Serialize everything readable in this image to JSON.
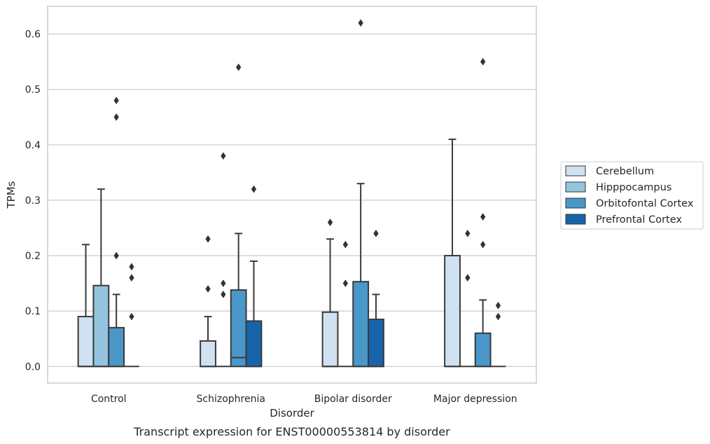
{
  "chart_data": {
    "type": "box",
    "caption": "Transcript expression for ENST00000553814 by disorder",
    "xlabel": "Disorder",
    "ylabel": "TPMs",
    "ylim": [
      -0.03,
      0.65
    ],
    "yticks": [
      0.0,
      0.1,
      0.2,
      0.3,
      0.4,
      0.5,
      0.6
    ],
    "ytick_labels": [
      "0.0",
      "0.1",
      "0.2",
      "0.3",
      "0.4",
      "0.5",
      "0.6"
    ],
    "grid": "horizontal",
    "legend_placement": "right",
    "categories": [
      "Control",
      "Schizophrenia",
      "Bipolar disorder",
      "Major depression"
    ],
    "series": [
      {
        "name": "Cerebellum",
        "color": "#d0e1f2",
        "boxes": [
          {
            "q1": 0.0,
            "median": 0.0,
            "q3": 0.09,
            "whisker_low": 0.0,
            "whisker_high": 0.22,
            "outliers": []
          },
          {
            "q1": 0.0,
            "median": 0.0,
            "q3": 0.046,
            "whisker_low": 0.0,
            "whisker_high": 0.09,
            "outliers": [
              0.14,
              0.23
            ]
          },
          {
            "q1": 0.0,
            "median": 0.0,
            "q3": 0.098,
            "whisker_low": 0.0,
            "whisker_high": 0.23,
            "outliers": [
              0.26
            ]
          },
          {
            "q1": 0.0,
            "median": 0.0,
            "q3": 0.2,
            "whisker_low": 0.0,
            "whisker_high": 0.41,
            "outliers": []
          }
        ]
      },
      {
        "name": "Hipppocampus",
        "color": "#94c4df",
        "boxes": [
          {
            "q1": 0.0,
            "median": 0.0,
            "q3": 0.146,
            "whisker_low": 0.0,
            "whisker_high": 0.32,
            "outliers": []
          },
          {
            "q1": 0.0,
            "median": 0.0,
            "q3": 0.0,
            "whisker_low": 0.0,
            "whisker_high": 0.0,
            "outliers": [
              0.13,
              0.15,
              0.38
            ]
          },
          {
            "q1": 0.0,
            "median": 0.0,
            "q3": 0.0,
            "whisker_low": 0.0,
            "whisker_high": 0.0,
            "outliers": [
              0.15,
              0.22
            ]
          },
          {
            "q1": 0.0,
            "median": 0.0,
            "q3": 0.0,
            "whisker_low": 0.0,
            "whisker_high": 0.0,
            "outliers": [
              0.16,
              0.24
            ]
          }
        ]
      },
      {
        "name": "Orbitofontal Cortex",
        "color": "#4a98c9",
        "boxes": [
          {
            "q1": 0.0,
            "median": 0.0,
            "q3": 0.07,
            "whisker_low": 0.0,
            "whisker_high": 0.13,
            "outliers": [
              0.2,
              0.45,
              0.48
            ]
          },
          {
            "q1": 0.0,
            "median": 0.016,
            "q3": 0.138,
            "whisker_low": 0.0,
            "whisker_high": 0.24,
            "outliers": [
              0.54
            ]
          },
          {
            "q1": 0.0,
            "median": 0.0,
            "q3": 0.153,
            "whisker_low": 0.0,
            "whisker_high": 0.33,
            "outliers": [
              0.62
            ]
          },
          {
            "q1": 0.0,
            "median": 0.0,
            "q3": 0.06,
            "whisker_low": 0.0,
            "whisker_high": 0.12,
            "outliers": [
              0.22,
              0.27,
              0.55
            ]
          }
        ]
      },
      {
        "name": "Prefrontal Cortex",
        "color": "#1764ab",
        "boxes": [
          {
            "q1": 0.0,
            "median": 0.0,
            "q3": 0.0,
            "whisker_low": 0.0,
            "whisker_high": 0.0,
            "outliers": [
              0.09,
              0.16,
              0.18
            ]
          },
          {
            "q1": 0.0,
            "median": 0.0,
            "q3": 0.082,
            "whisker_low": 0.0,
            "whisker_high": 0.19,
            "outliers": [
              0.32
            ]
          },
          {
            "q1": 0.0,
            "median": 0.0,
            "q3": 0.085,
            "whisker_low": 0.0,
            "whisker_high": 0.13,
            "outliers": [
              0.24
            ]
          },
          {
            "q1": 0.0,
            "median": 0.0,
            "q3": 0.0,
            "whisker_low": 0.0,
            "whisker_high": 0.0,
            "outliers": [
              0.09,
              0.11
            ]
          }
        ]
      }
    ]
  }
}
